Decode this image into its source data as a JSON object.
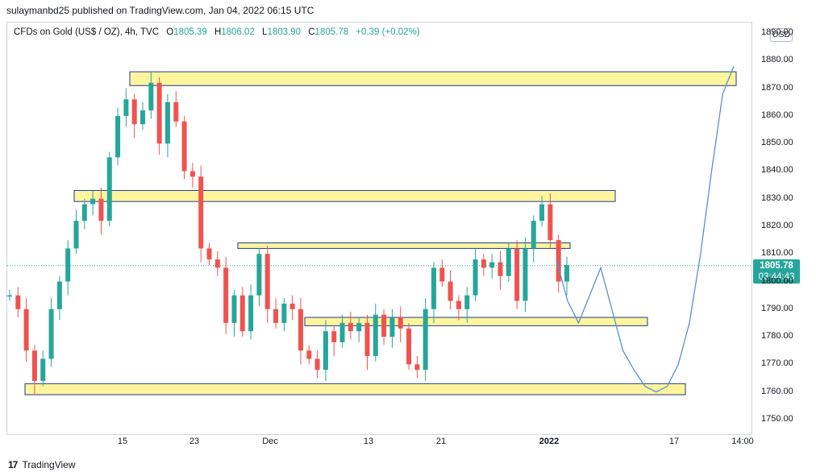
{
  "header": {
    "text": "sulaymanbd25 published on TradingView.com, Jan 04, 2022 06:15 UTC"
  },
  "legend": {
    "symbol": "CFDs on Gold (US$ / OZ), 4h, TVC",
    "open_label": "O",
    "open": "1805.39",
    "high_label": "H",
    "high": "1806.02",
    "low_label": "L",
    "low": "1803.90",
    "close_label": "C",
    "close": "1805.78",
    "change": "+0.39 (+0.02%)"
  },
  "axis": {
    "currency": "USD"
  },
  "price_label": {
    "price": "1805.78",
    "countdown": "03:44:43"
  },
  "footer": {
    "brand": "TradingView",
    "logo": "tradingview-logo-icon"
  },
  "colors": {
    "up": "#26a69a",
    "down": "#ef5350",
    "zone_fill": "#fff59d",
    "zone_border": "#1e3a8a",
    "projection": "#5b8dd6"
  },
  "chart_data": {
    "type": "line",
    "title": "",
    "ylim": [
      1745,
      1895
    ],
    "y_ticks": [
      "1890.00",
      "1880.00",
      "1870.00",
      "1860.00",
      "1850.00",
      "1840.00",
      "1830.00",
      "1820.00",
      "1810.00",
      "1800.00",
      "1790.00",
      "1780.00",
      "1770.00",
      "1760.00",
      "1750.00"
    ],
    "x_ticks": [
      "15",
      "23",
      "Dec",
      "13",
      "21",
      "2022",
      "17",
      "14:00"
    ],
    "last_price": 1805.78,
    "series": [
      {
        "values": [
          1795,
          1790,
          1775,
          1764,
          1772,
          1790,
          1800,
          1812,
          1822,
          1828,
          1830,
          1822,
          1845,
          1860,
          1866,
          1857,
          1862,
          1872,
          1850,
          1865,
          1858,
          1840,
          1838,
          1812,
          1808,
          1805,
          1785,
          1795,
          1782,
          1795,
          1810,
          1790,
          1785,
          1792,
          1790,
          1775,
          1772,
          1768,
          1782,
          1778,
          1785,
          1782,
          1785,
          1773,
          1788,
          1780,
          1787,
          1783,
          1770,
          1768,
          1790,
          1805,
          1800,
          1793,
          1790,
          1795,
          1808,
          1805,
          1807,
          1802,
          1812,
          1793,
          1812,
          1822,
          1828,
          1815,
          1800,
          1806
        ]
      },
      {
        "values": [
          1808,
          1793,
          1785,
          1795,
          1805,
          1790,
          1775,
          1768,
          1762,
          1760,
          1762,
          1770,
          1785,
          1810,
          1840,
          1868,
          1878
        ]
      }
    ],
    "zones": [
      {
        "from": 1871,
        "to": 1876
      },
      {
        "from": 1829,
        "to": 1833
      },
      {
        "from": 1812,
        "to": 1814
      },
      {
        "from": 1784,
        "to": 1787
      },
      {
        "from": 1759,
        "to": 1763
      }
    ]
  }
}
